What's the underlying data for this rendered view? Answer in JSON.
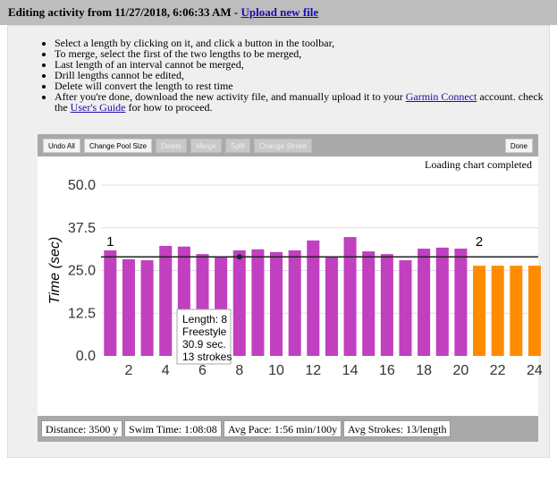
{
  "header": {
    "title": "Editing activity from 11/27/2018, 6:06:33 AM - ",
    "link": "Upload new file"
  },
  "instructions": [
    "Select a length by clicking on it, and click a button in the toolbar,",
    "To merge, select the first of the two lengths to be merged,",
    "Last length of an interval cannot be merged,",
    "Drill lengths cannot be edited,",
    "Delete will convert the length to rest time"
  ],
  "final_instruction": {
    "text1": "After you're done, download the new activity file, and manually upload it to your ",
    "link1": "Garmin Connect",
    "text2": " account. check the ",
    "link2": "User's Guide",
    "text3": " for how to proceed."
  },
  "toolbar": [
    {
      "label": "Undo All",
      "enabled": true
    },
    {
      "label": "Change Pool Size",
      "enabled": true
    },
    {
      "label": "Delete",
      "enabled": false
    },
    {
      "label": "Merge",
      "enabled": false
    },
    {
      "label": "Split",
      "enabled": false
    },
    {
      "label": "Change Stroke",
      "enabled": false
    }
  ],
  "done": "Done",
  "chart_data": {
    "type": "bar",
    "status": "Loading chart completed",
    "y_label": "Time (sec)",
    "series": [
      {
        "color": "#c040c0",
        "x": [
          1,
          2,
          3,
          4,
          5,
          6,
          7,
          8,
          9,
          10,
          11,
          12,
          13,
          14,
          15,
          16,
          17,
          18,
          19,
          20
        ],
        "values": [
          30.9,
          28.3,
          28,
          32.2,
          32,
          29.8,
          29,
          30.9,
          31.2,
          30.4,
          30.9,
          33.8,
          29,
          34.8,
          30.6,
          29.8,
          28,
          31.4,
          31.7,
          31.4
        ]
      },
      {
        "color": "#ff8c00",
        "x": [
          21,
          22,
          23,
          24
        ],
        "values": [
          26.4,
          26.4,
          26.4,
          26.4
        ]
      }
    ],
    "reference_line": 29,
    "annotations": [
      {
        "text": "1",
        "x": 1
      },
      {
        "text": "2",
        "x": 21
      }
    ],
    "tooltip": {
      "x": 8,
      "lines": [
        "Length: 8",
        "Freestyle",
        "30.9 sec.",
        "13 strokes"
      ]
    },
    "xlim": [
      0.5,
      24.1
    ],
    "xticks": [
      2,
      4,
      6,
      8,
      10,
      12,
      14,
      16,
      18,
      20,
      22,
      24
    ],
    "ylim": [
      0,
      50
    ],
    "yticks": [
      {
        "value": 0,
        "label": "0.0"
      },
      {
        "value": 12.5,
        "label": "12.5"
      },
      {
        "value": 25,
        "label": "25.0"
      },
      {
        "value": 37.5,
        "label": "37.5"
      },
      {
        "value": 50,
        "label": "50.0"
      }
    ],
    "grid": true
  },
  "stats": [
    "Distance: 3500 y",
    "Swim Time: 1:08:08",
    "Avg Pace: 1:56 min/100y",
    "Avg Strokes: 13/length"
  ]
}
